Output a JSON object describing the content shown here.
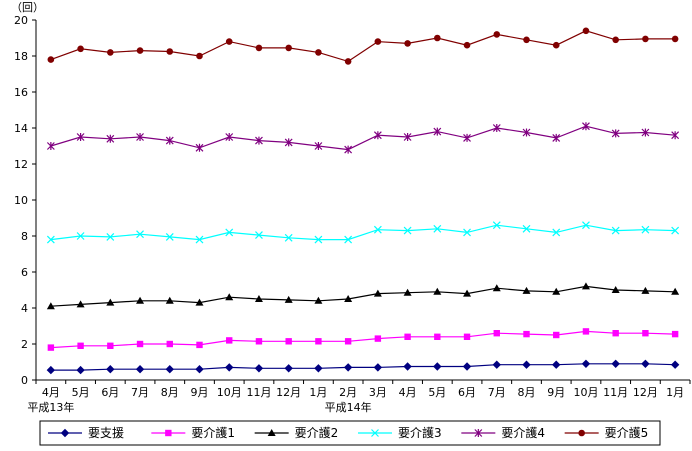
{
  "chart_data": {
    "type": "line",
    "y_unit_label": "（回）",
    "ylim": [
      0,
      20
    ],
    "yticks": [
      0,
      2,
      4,
      6,
      8,
      10,
      12,
      14,
      16,
      18,
      20
    ],
    "categories": [
      "4月",
      "5月",
      "6月",
      "7月",
      "8月",
      "9月",
      "10月",
      "11月",
      "12月",
      "1月",
      "2月",
      "3月",
      "4月",
      "5月",
      "6月",
      "7月",
      "8月",
      "9月",
      "10月",
      "11月",
      "12月",
      "1月"
    ],
    "year_labels": [
      {
        "index": 0,
        "text": "平成13年"
      },
      {
        "index": 10,
        "text": "平成14年"
      }
    ],
    "grid": false,
    "legend_position": "bottom",
    "series": [
      {
        "name": "要支援",
        "color": "#000080",
        "marker": "diamond",
        "values": [
          0.55,
          0.55,
          0.6,
          0.6,
          0.6,
          0.6,
          0.7,
          0.65,
          0.65,
          0.65,
          0.7,
          0.7,
          0.75,
          0.75,
          0.75,
          0.85,
          0.85,
          0.85,
          0.9,
          0.9,
          0.9,
          0.85
        ]
      },
      {
        "name": "要介護1",
        "color": "#FF00FF",
        "marker": "square",
        "values": [
          1.8,
          1.9,
          1.9,
          2.0,
          2.0,
          1.95,
          2.2,
          2.15,
          2.15,
          2.15,
          2.15,
          2.3,
          2.4,
          2.4,
          2.4,
          2.6,
          2.55,
          2.5,
          2.7,
          2.6,
          2.6,
          2.55
        ]
      },
      {
        "name": "要介護2",
        "color": "#000000",
        "marker": "triangle",
        "values": [
          4.1,
          4.2,
          4.3,
          4.4,
          4.4,
          4.3,
          4.6,
          4.5,
          4.45,
          4.4,
          4.5,
          4.8,
          4.85,
          4.9,
          4.8,
          5.1,
          4.95,
          4.9,
          5.2,
          5.0,
          4.95,
          4.9
        ]
      },
      {
        "name": "要介護3",
        "color": "#00FFFF",
        "marker": "x",
        "values": [
          7.8,
          8.0,
          7.95,
          8.1,
          7.95,
          7.8,
          8.2,
          8.05,
          7.9,
          7.8,
          7.8,
          8.35,
          8.3,
          8.4,
          8.2,
          8.6,
          8.4,
          8.2,
          8.6,
          8.3,
          8.35,
          8.3
        ]
      },
      {
        "name": "要介護4",
        "color": "#800080",
        "marker": "star",
        "values": [
          13.0,
          13.5,
          13.4,
          13.5,
          13.3,
          12.9,
          13.5,
          13.3,
          13.2,
          13.0,
          12.8,
          13.6,
          13.5,
          13.8,
          13.45,
          14.0,
          13.75,
          13.45,
          14.1,
          13.7,
          13.75,
          13.6
        ]
      },
      {
        "name": "要介護5",
        "color": "#800000",
        "marker": "circle",
        "values": [
          17.8,
          18.4,
          18.2,
          18.3,
          18.25,
          18.0,
          18.8,
          18.45,
          18.45,
          18.2,
          17.7,
          18.8,
          18.7,
          19.0,
          18.6,
          19.2,
          18.9,
          18.6,
          19.4,
          18.9,
          18.95,
          18.95
        ]
      }
    ]
  }
}
